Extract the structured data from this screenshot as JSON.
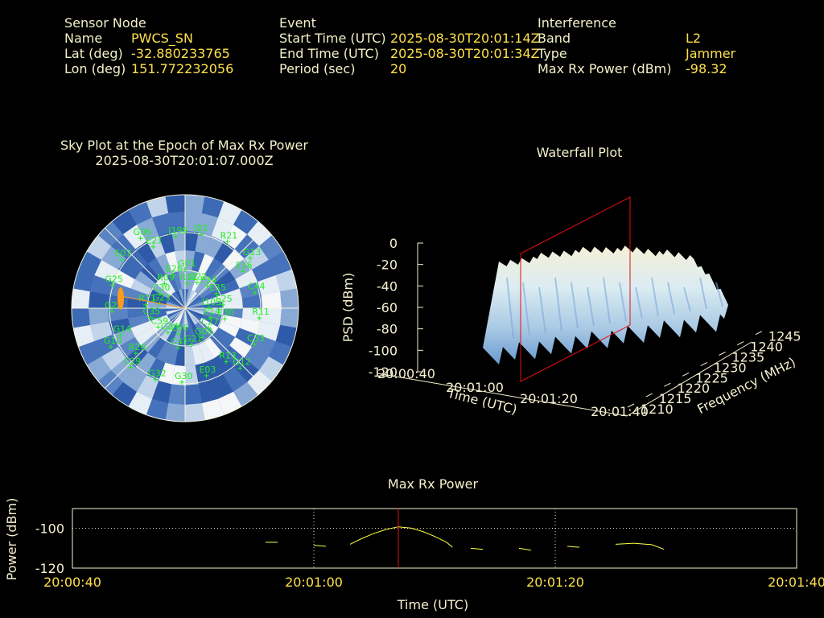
{
  "header": {
    "sensor": {
      "title": "Sensor Node",
      "rows": [
        {
          "label": "Name",
          "value": "PWCS_SN"
        },
        {
          "label": "Lat (deg)",
          "value": "-32.880233765"
        },
        {
          "label": "Lon (deg)",
          "value": "151.772232056"
        }
      ]
    },
    "event": {
      "title": "Event",
      "rows": [
        {
          "label": "Start Time (UTC)",
          "value": "2025-08-30T20:01:14Z"
        },
        {
          "label": "End Time (UTC)",
          "value": "2025-08-30T20:01:34Z"
        },
        {
          "label": "Period (sec)",
          "value": "20"
        }
      ]
    },
    "interference": {
      "title": "Interference",
      "rows": [
        {
          "label": "Band",
          "value": "L2"
        },
        {
          "label": "Type",
          "value": "Jammer"
        },
        {
          "label": "Max Rx Power (dBm)",
          "value": "-98.32"
        }
      ]
    }
  },
  "colors": {
    "text": "#f3f0c9",
    "value": "#ffe04a",
    "satellite": "#22ee22",
    "jammer": "#ff9a1a",
    "marker": "#e01010",
    "trace": "#ffff40"
  },
  "chart_data": [
    {
      "type": "sky-polar",
      "title": "Sky Plot at the Epoch of Max Rx Power",
      "subtitle": "2025-08-30T20:01:07.000Z",
      "jammer_bearing": "west",
      "satellites": [
        "I103",
        "R26",
        "R12",
        "R13",
        "G23",
        "E36",
        "C56",
        "E21",
        "E14",
        "G14",
        "R22",
        "E03",
        "C30",
        "C44",
        "G24",
        "J199",
        "C27",
        "G28",
        "E34",
        "G30",
        "R09",
        "R11",
        "C59",
        "J02",
        "G03",
        "G25",
        "E35",
        "G32",
        "E26",
        "C33",
        "C35",
        "R21",
        "G21",
        "E07",
        "E25",
        "C29",
        "G01",
        "G12",
        "R11",
        "G13",
        "C41",
        "G06",
        "E30",
        "G10"
      ]
    },
    {
      "type": "surface",
      "title": "Waterfall Plot",
      "xlabel": "Time (UTC)",
      "ylabel": "Frequency (MHz)",
      "zlabel": "PSD (dBm)",
      "time_ticks": [
        "20:00:40",
        "20:01:00",
        "20:01:20",
        "20:01:40"
      ],
      "freq_ticks": [
        1210,
        1215,
        1220,
        1225,
        1230,
        1235,
        1240,
        1245
      ],
      "z_ticks": [
        0,
        -20,
        -40,
        -60,
        -80,
        -100,
        -120
      ],
      "zlim": [
        -120,
        0
      ],
      "marker_time": "20:01:07"
    },
    {
      "type": "line",
      "title": "Max Rx Power",
      "xlabel": "Time (UTC)",
      "ylabel": "Power (dBm)",
      "x_ticks": [
        "20:00:40",
        "20:01:00",
        "20:01:20",
        "20:01:40"
      ],
      "y_ticks": [
        -100,
        -120
      ],
      "ylim": [
        -120,
        -90
      ],
      "reference_line": -100,
      "marker_time_sec": 27,
      "segments": [
        [
          [
            16.0,
            -107
          ],
          [
            17.0,
            -107
          ]
        ],
        [
          [
            20.0,
            -108.5
          ],
          [
            21.0,
            -109
          ]
        ],
        [
          [
            23.0,
            -108
          ],
          [
            24.0,
            -105
          ],
          [
            25.0,
            -102.5
          ],
          [
            26.0,
            -100.5
          ],
          [
            27.0,
            -99.2
          ],
          [
            28.0,
            -99.8
          ],
          [
            29.0,
            -101.5
          ],
          [
            30.0,
            -104
          ],
          [
            31.0,
            -107
          ],
          [
            31.5,
            -109.5
          ]
        ],
        [
          [
            33.0,
            -110
          ],
          [
            34.0,
            -110.5
          ]
        ],
        [
          [
            37.0,
            -110
          ],
          [
            38.0,
            -111
          ]
        ],
        [
          [
            41.0,
            -109
          ],
          [
            42.0,
            -109.5
          ]
        ],
        [
          [
            45.0,
            -108
          ],
          [
            46.5,
            -107.5
          ],
          [
            48.0,
            -108.2
          ],
          [
            49.0,
            -110.5
          ]
        ]
      ]
    }
  ]
}
